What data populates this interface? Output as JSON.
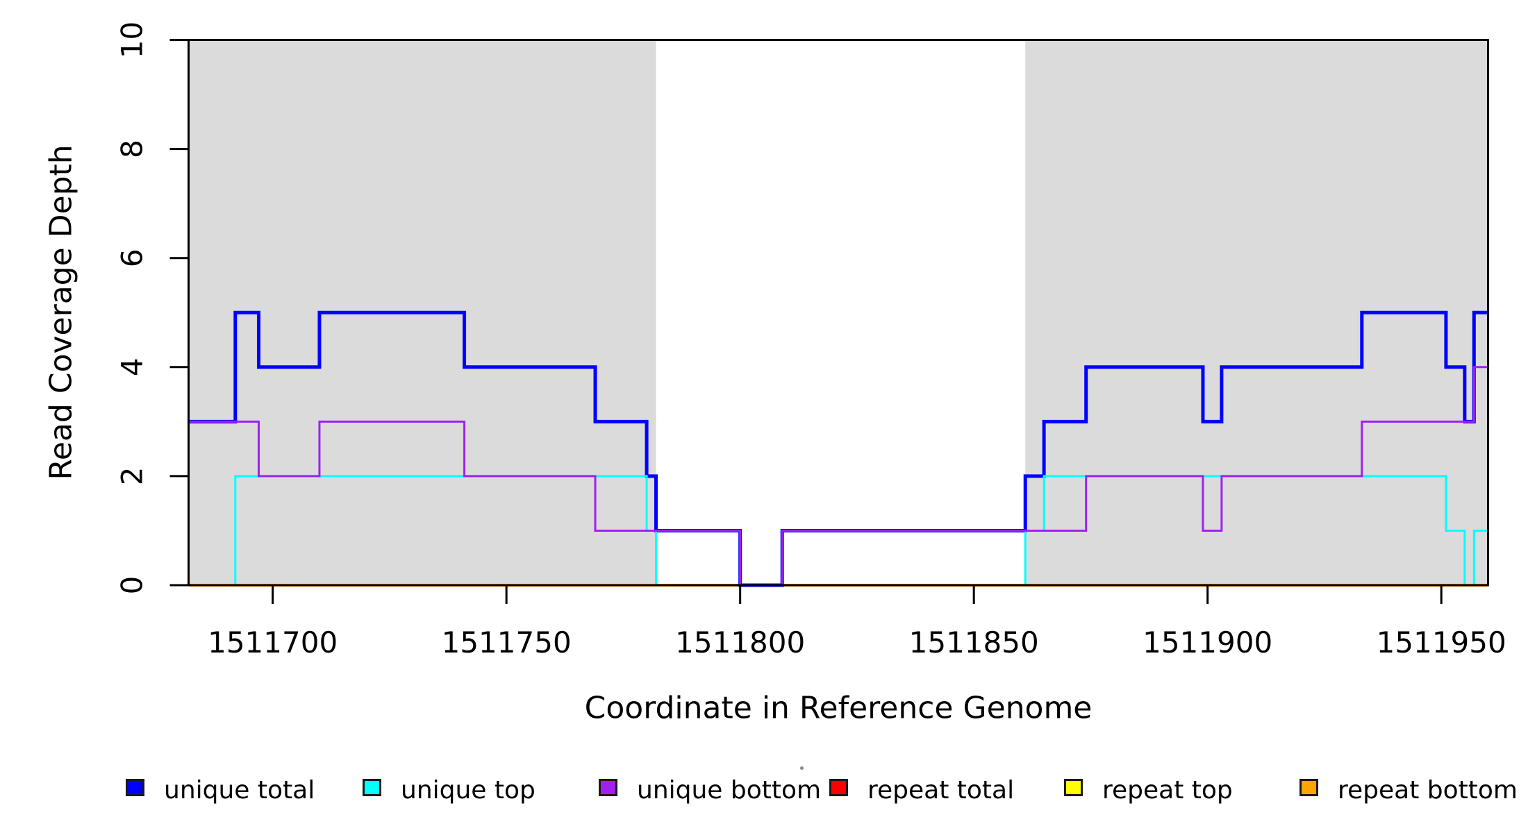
{
  "chart_data": {
    "type": "step-line",
    "title": "",
    "xlabel": "Coordinate in Reference Genome",
    "ylabel": "Read Coverage Depth",
    "xlim": [
      1511682,
      1511960
    ],
    "ylim": [
      0,
      10
    ],
    "x_ticks": [
      1511700,
      1511750,
      1511800,
      1511850,
      1511900,
      1511950
    ],
    "y_ticks": [
      0,
      2,
      4,
      6,
      8,
      10
    ],
    "grid": false,
    "box_color": "#000000",
    "shade_color": "#DBDBDB",
    "shaded_regions": [
      {
        "x0": 1511682,
        "x1": 1511782
      },
      {
        "x0": 1511861,
        "x1": 1511960
      }
    ],
    "series": [
      {
        "name": "repeat total",
        "color": "#FF0000",
        "width": 3.5,
        "points": [
          [
            1511682,
            0
          ],
          [
            1511960,
            0
          ]
        ]
      },
      {
        "name": "repeat top",
        "color": "#FFFF00",
        "width": 3,
        "points": [
          [
            1511682,
            0
          ],
          [
            1511960,
            0
          ]
        ]
      },
      {
        "name": "repeat bottom",
        "color": "#FFA500",
        "width": 4,
        "points": [
          [
            1511682,
            0
          ],
          [
            1511960,
            0
          ]
        ]
      },
      {
        "name": "unique total",
        "color": "#0000FF",
        "width": 5,
        "points": [
          [
            1511682,
            3
          ],
          [
            1511692,
            5
          ],
          [
            1511697,
            4
          ],
          [
            1511710,
            5
          ],
          [
            1511741,
            4
          ],
          [
            1511769,
            3
          ],
          [
            1511780,
            2
          ],
          [
            1511782,
            1
          ],
          [
            1511800,
            0
          ],
          [
            1511809,
            1
          ],
          [
            1511861,
            2
          ],
          [
            1511865,
            3
          ],
          [
            1511874,
            4
          ],
          [
            1511899,
            3
          ],
          [
            1511903,
            4
          ],
          [
            1511933,
            5
          ],
          [
            1511951,
            4
          ],
          [
            1511955,
            3
          ],
          [
            1511957,
            5
          ],
          [
            1511960,
            5
          ]
        ]
      },
      {
        "name": "unique top",
        "color": "#00FFFF",
        "width": 3,
        "points": [
          [
            1511682,
            0
          ],
          [
            1511692,
            2
          ],
          [
            1511780,
            1
          ],
          [
            1511782,
            0
          ],
          [
            1511861,
            1
          ],
          [
            1511865,
            2
          ],
          [
            1511951,
            1
          ],
          [
            1511955,
            0
          ],
          [
            1511957,
            1
          ],
          [
            1511960,
            1
          ]
        ]
      },
      {
        "name": "unique bottom",
        "color": "#A020F0",
        "width": 3,
        "points": [
          [
            1511682,
            3
          ],
          [
            1511697,
            2
          ],
          [
            1511710,
            3
          ],
          [
            1511741,
            2
          ],
          [
            1511769,
            1
          ],
          [
            1511800,
            0
          ],
          [
            1511809,
            1
          ],
          [
            1511874,
            2
          ],
          [
            1511899,
            1
          ],
          [
            1511903,
            2
          ],
          [
            1511933,
            3
          ],
          [
            1511957,
            4
          ],
          [
            1511960,
            4
          ]
        ]
      }
    ],
    "legend": [
      {
        "label": "unique total",
        "color": "#0000FF"
      },
      {
        "label": "unique top",
        "color": "#00FFFF"
      },
      {
        "label": "unique bottom",
        "color": "#A020F0"
      },
      {
        "label": "repeat total",
        "color": "#FF0000"
      },
      {
        "label": "repeat top",
        "color": "#FFFF00"
      },
      {
        "label": "repeat bottom",
        "color": "#FFA500"
      }
    ],
    "legend_position": "bottom"
  }
}
